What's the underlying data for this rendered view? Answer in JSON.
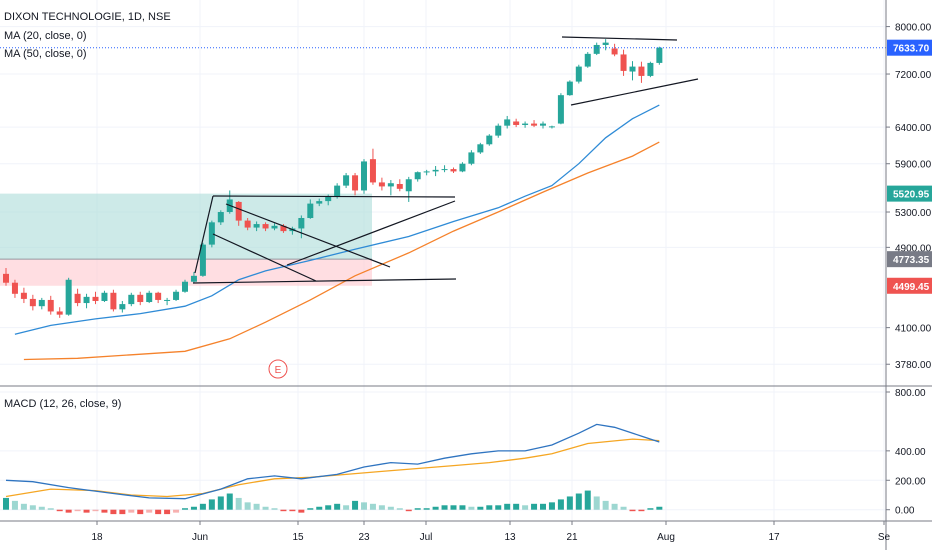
{
  "header": {
    "title": "DIXON TECHNOLOGIE, 1D, NSE",
    "ma20_label": "MA (20, close, 0)",
    "ma50_label": "MA (50, close, 0)",
    "macd_label": "MACD (12, 26, close, 9)",
    "earnings_marker": "E"
  },
  "colors": {
    "up": "#26a69a",
    "down": "#ef5350",
    "ma20": "#2f8bd6",
    "ma50": "#f5822b",
    "macd": "#2f74c0",
    "signal": "#f5a623",
    "grid": "#f0f3fa",
    "price_line": "#2962ff",
    "zone_green": "#b2dfdb",
    "zone_red": "#ffcdd2",
    "label_green": "#26a69a",
    "label_gray": "#787b86",
    "label_red": "#ef5350",
    "label_blue": "#2962ff"
  },
  "chart_data": [
    {
      "type": "candlestick",
      "name": "price",
      "y_scale": "log",
      "ylim": [
        3650,
        8300
      ],
      "y_ticks": [
        "8000.00",
        "7200.00",
        "6400.00",
        "5900.00",
        "5300.00",
        "4900.00",
        "4100.00",
        "3780.00"
      ],
      "x_ticks": [
        "18",
        "Jun",
        "15",
        "23",
        "Jul",
        "13",
        "21",
        "Aug",
        "17",
        "Se"
      ],
      "price_labels": [
        {
          "value": "7633.70",
          "kind": "blue"
        },
        {
          "value": "5520.95",
          "kind": "green"
        },
        {
          "value": "4773.35",
          "kind": "gray"
        },
        {
          "value": "4499.45",
          "kind": "red"
        }
      ],
      "candles": [
        [
          4620,
          4680,
          4500,
          4530
        ],
        [
          4530,
          4560,
          4380,
          4420
        ],
        [
          4430,
          4480,
          4330,
          4370
        ],
        [
          4370,
          4410,
          4260,
          4300
        ],
        [
          4300,
          4380,
          4270,
          4360
        ],
        [
          4360,
          4400,
          4220,
          4250
        ],
        [
          4250,
          4290,
          4190,
          4220
        ],
        [
          4220,
          4580,
          4210,
          4560
        ],
        [
          4420,
          4470,
          4300,
          4330
        ],
        [
          4330,
          4420,
          4280,
          4390
        ],
        [
          4390,
          4440,
          4320,
          4350
        ],
        [
          4350,
          4450,
          4340,
          4430
        ],
        [
          4430,
          4460,
          4250,
          4270
        ],
        [
          4270,
          4350,
          4240,
          4320
        ],
        [
          4320,
          4430,
          4300,
          4410
        ],
        [
          4410,
          4440,
          4310,
          4340
        ],
        [
          4340,
          4450,
          4330,
          4430
        ],
        [
          4430,
          4440,
          4330,
          4360
        ],
        [
          4360,
          4380,
          4310,
          4360
        ],
        [
          4360,
          4460,
          4350,
          4440
        ],
        [
          4440,
          4560,
          4430,
          4540
        ],
        [
          4540,
          4640,
          4530,
          4600
        ],
        [
          4600,
          4950,
          4590,
          4930
        ],
        [
          4930,
          5200,
          4900,
          5180
        ],
        [
          5180,
          5320,
          5150,
          5300
        ],
        [
          5300,
          5560,
          5280,
          5450
        ],
        [
          5420,
          5430,
          5140,
          5200
        ],
        [
          5200,
          5230,
          5090,
          5120
        ],
        [
          5120,
          5190,
          5080,
          5160
        ],
        [
          5160,
          5180,
          5080,
          5110
        ],
        [
          5110,
          5170,
          5090,
          5140
        ],
        [
          5140,
          5160,
          5060,
          5080
        ],
        [
          5080,
          5130,
          5040,
          5110
        ],
        [
          5110,
          5260,
          5000,
          5230
        ],
        [
          5230,
          5450,
          5220,
          5400
        ],
        [
          5400,
          5460,
          5370,
          5430
        ],
        [
          5430,
          5510,
          5380,
          5480
        ],
        [
          5480,
          5650,
          5460,
          5620
        ],
        [
          5620,
          5780,
          5590,
          5750
        ],
        [
          5750,
          5780,
          5500,
          5560
        ],
        [
          5560,
          5960,
          5520,
          5930
        ],
        [
          5960,
          6100,
          5630,
          5660
        ],
        [
          5660,
          5720,
          5560,
          5610
        ],
        [
          5610,
          5690,
          5500,
          5650
        ],
        [
          5640,
          5700,
          5550,
          5580
        ],
        [
          5550,
          5730,
          5420,
          5700
        ],
        [
          5700,
          5800,
          5670,
          5790
        ],
        [
          5790,
          5820,
          5750,
          5800
        ],
        [
          5800,
          5870,
          5740,
          5820
        ],
        [
          5820,
          5880,
          5790,
          5830
        ],
        [
          5830,
          5850,
          5780,
          5800
        ],
        [
          5800,
          5920,
          5790,
          5900
        ],
        [
          5900,
          6080,
          5880,
          6050
        ],
        [
          6050,
          6180,
          6030,
          6160
        ],
        [
          6160,
          6300,
          6140,
          6280
        ],
        [
          6280,
          6450,
          6250,
          6420
        ],
        [
          6420,
          6560,
          6380,
          6510
        ],
        [
          6480,
          6520,
          6400,
          6430
        ],
        [
          6430,
          6480,
          6390,
          6450
        ],
        [
          6450,
          6500,
          6400,
          6420
        ],
        [
          6420,
          6480,
          6380,
          6450
        ],
        [
          6400,
          6420,
          6380,
          6410
        ],
        [
          6450,
          6900,
          6440,
          6870
        ],
        [
          6870,
          7100,
          6860,
          7080
        ],
        [
          7080,
          7350,
          7050,
          7320
        ],
        [
          7320,
          7560,
          7300,
          7530
        ],
        [
          7530,
          7720,
          7510,
          7680
        ],
        [
          7680,
          7780,
          7590,
          7720
        ],
        [
          7620,
          7700,
          7490,
          7520
        ],
        [
          7520,
          7600,
          7170,
          7250
        ],
        [
          7240,
          7410,
          7100,
          7320
        ],
        [
          7320,
          7400,
          7060,
          7170
        ],
        [
          7170,
          7400,
          7150,
          7380
        ],
        [
          7380,
          7650,
          7350,
          7633.7
        ]
      ],
      "ma20": [
        [
          4040,
          1
        ],
        [
          4120,
          5
        ],
        [
          4180,
          10
        ],
        [
          4230,
          15
        ],
        [
          4300,
          20
        ],
        [
          4400,
          23
        ],
        [
          4560,
          26
        ],
        [
          4650,
          29
        ],
        [
          4760,
          34
        ],
        [
          4880,
          39
        ],
        [
          5020,
          45
        ],
        [
          5190,
          50
        ],
        [
          5350,
          55
        ],
        [
          5490,
          58
        ],
        [
          5620,
          61
        ],
        [
          5900,
          64
        ],
        [
          6250,
          67
        ],
        [
          6520,
          70
        ],
        [
          6720,
          73
        ]
      ],
      "ma50": [
        [
          3820,
          2
        ],
        [
          3830,
          8
        ],
        [
          3860,
          14
        ],
        [
          3890,
          20
        ],
        [
          4000,
          25
        ],
        [
          4150,
          29
        ],
        [
          4360,
          34
        ],
        [
          4600,
          39
        ],
        [
          4840,
          45
        ],
        [
          5080,
          50
        ],
        [
          5300,
          55
        ],
        [
          5540,
          60
        ],
        [
          5780,
          65
        ],
        [
          6000,
          70
        ],
        [
          6190,
          73
        ]
      ]
    },
    {
      "type": "macd",
      "name": "MACD (12, 26, close, 9)",
      "ylim": [
        -70,
        800
      ],
      "y_ticks": [
        "800.00",
        "400.00",
        "200.00",
        "0.00"
      ],
      "macd": [
        [
          200,
          0
        ],
        [
          190,
          3
        ],
        [
          150,
          7
        ],
        [
          110,
          12
        ],
        [
          80,
          16
        ],
        [
          75,
          20
        ],
        [
          140,
          24
        ],
        [
          210,
          27
        ],
        [
          230,
          30
        ],
        [
          210,
          33
        ],
        [
          240,
          37
        ],
        [
          290,
          40
        ],
        [
          320,
          43
        ],
        [
          310,
          46
        ],
        [
          350,
          49
        ],
        [
          380,
          52
        ],
        [
          400,
          55
        ],
        [
          400,
          58
        ],
        [
          440,
          61
        ],
        [
          520,
          64
        ],
        [
          580,
          66
        ],
        [
          560,
          68
        ],
        [
          500,
          71
        ],
        [
          460,
          73
        ]
      ],
      "signal": [
        [
          90,
          0
        ],
        [
          140,
          5
        ],
        [
          130,
          10
        ],
        [
          100,
          14
        ],
        [
          90,
          18
        ],
        [
          110,
          22
        ],
        [
          170,
          26
        ],
        [
          210,
          30
        ],
        [
          220,
          34
        ],
        [
          240,
          38
        ],
        [
          260,
          42
        ],
        [
          280,
          46
        ],
        [
          300,
          50
        ],
        [
          320,
          54
        ],
        [
          350,
          58
        ],
        [
          380,
          61
        ],
        [
          450,
          65
        ],
        [
          480,
          70
        ],
        [
          470,
          73
        ]
      ],
      "histogram": [
        80,
        60,
        40,
        30,
        20,
        10,
        -10,
        -20,
        -10,
        -20,
        -10,
        -20,
        -30,
        -30,
        -20,
        -30,
        -20,
        -30,
        -30,
        -20,
        10,
        20,
        40,
        70,
        90,
        110,
        80,
        50,
        40,
        20,
        10,
        -10,
        -10,
        -20,
        10,
        20,
        30,
        40,
        30,
        60,
        50,
        40,
        30,
        20,
        10,
        -10,
        10,
        10,
        20,
        30,
        30,
        30,
        20,
        20,
        30,
        30,
        40,
        40,
        30,
        40,
        40,
        50,
        70,
        90,
        110,
        130,
        90,
        60,
        40,
        20,
        -10,
        -10,
        10,
        20
      ]
    }
  ]
}
